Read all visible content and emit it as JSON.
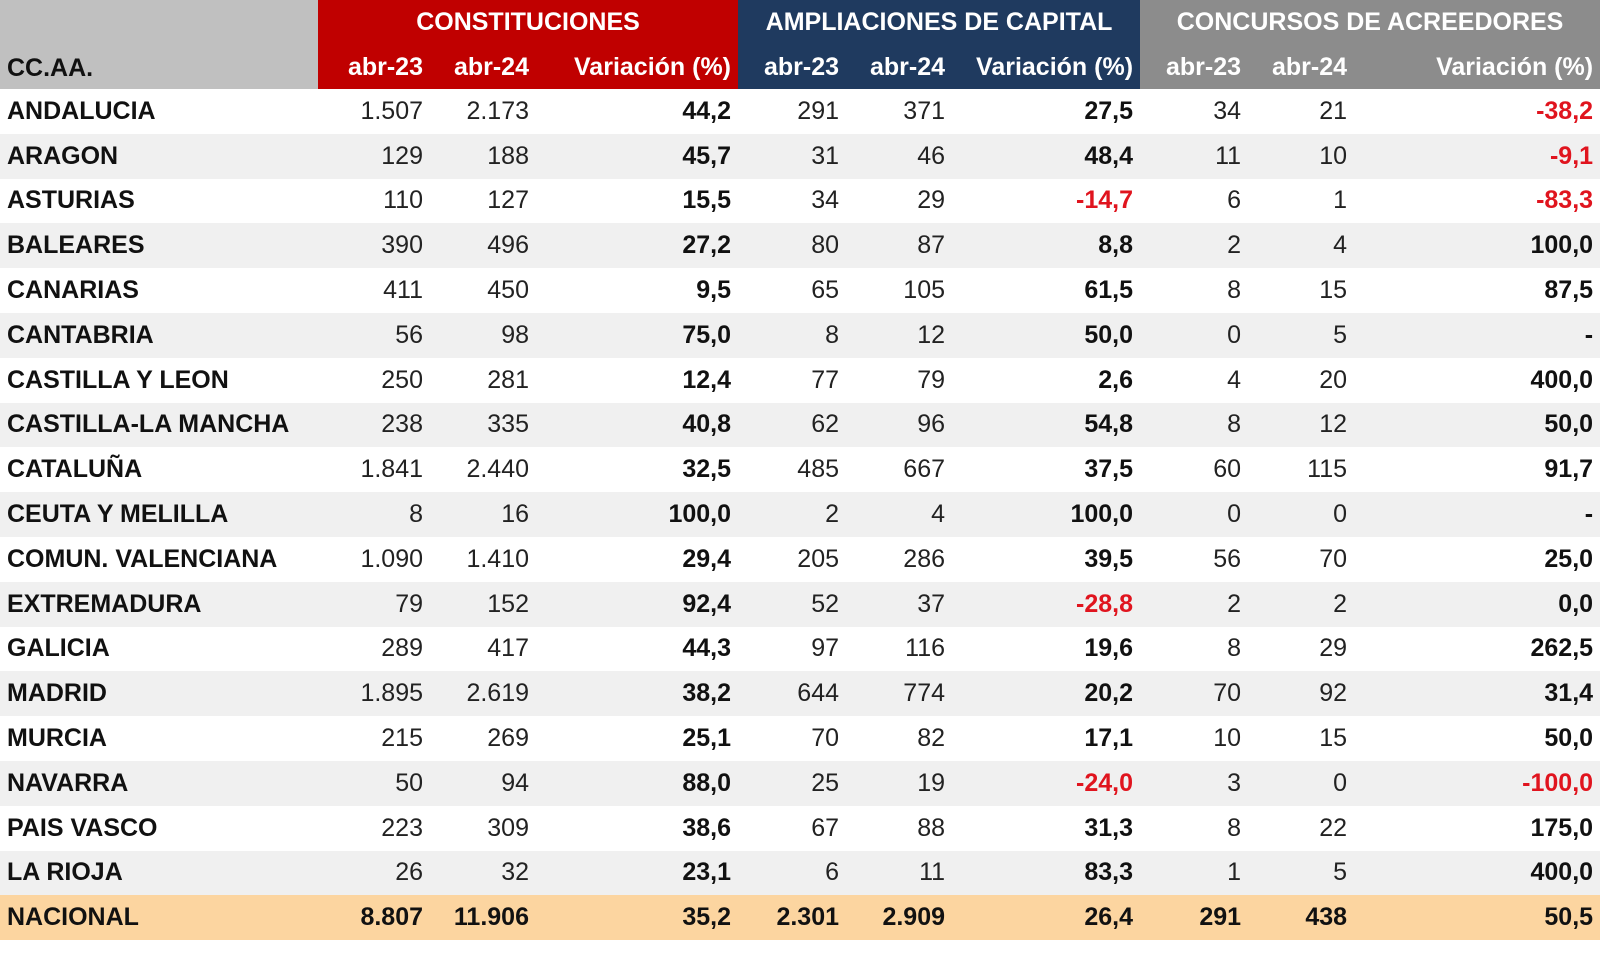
{
  "header": {
    "region_label": "CC.AA.",
    "groups": [
      "CONSTITUCIONES",
      "AMPLIACIONES DE CAPITAL",
      "CONCURSOS DE ACREEDORES"
    ],
    "subcols": [
      "abr-23",
      "abr-24",
      "Variación (%)"
    ]
  },
  "colors": {
    "constituciones": "#c00000",
    "ampliaciones": "#1f3a5f",
    "concursos": "#8c8c8c",
    "negative": "#e0141e",
    "total_row": "#fcd5a0"
  },
  "rows": [
    [
      "ANDALUCIA",
      "1.507",
      "2.173",
      "44,2",
      "291",
      "371",
      "27,5",
      "34",
      "21",
      "-38,2"
    ],
    [
      "ARAGON",
      "129",
      "188",
      "45,7",
      "31",
      "46",
      "48,4",
      "11",
      "10",
      "-9,1"
    ],
    [
      "ASTURIAS",
      "110",
      "127",
      "15,5",
      "34",
      "29",
      "-14,7",
      "6",
      "1",
      "-83,3"
    ],
    [
      "BALEARES",
      "390",
      "496",
      "27,2",
      "80",
      "87",
      "8,8",
      "2",
      "4",
      "100,0"
    ],
    [
      "CANARIAS",
      "411",
      "450",
      "9,5",
      "65",
      "105",
      "61,5",
      "8",
      "15",
      "87,5"
    ],
    [
      "CANTABRIA",
      "56",
      "98",
      "75,0",
      "8",
      "12",
      "50,0",
      "0",
      "5",
      "-"
    ],
    [
      "CASTILLA Y LEON",
      "250",
      "281",
      "12,4",
      "77",
      "79",
      "2,6",
      "4",
      "20",
      "400,0"
    ],
    [
      "CASTILLA-LA MANCHA",
      "238",
      "335",
      "40,8",
      "62",
      "96",
      "54,8",
      "8",
      "12",
      "50,0"
    ],
    [
      "CATALUÑA",
      "1.841",
      "2.440",
      "32,5",
      "485",
      "667",
      "37,5",
      "60",
      "115",
      "91,7"
    ],
    [
      "CEUTA Y MELILLA",
      "8",
      "16",
      "100,0",
      "2",
      "4",
      "100,0",
      "0",
      "0",
      "-"
    ],
    [
      "COMUN. VALENCIANA",
      "1.090",
      "1.410",
      "29,4",
      "205",
      "286",
      "39,5",
      "56",
      "70",
      "25,0"
    ],
    [
      "EXTREMADURA",
      "79",
      "152",
      "92,4",
      "52",
      "37",
      "-28,8",
      "2",
      "2",
      "0,0"
    ],
    [
      "GALICIA",
      "289",
      "417",
      "44,3",
      "97",
      "116",
      "19,6",
      "8",
      "29",
      "262,5"
    ],
    [
      "MADRID",
      "1.895",
      "2.619",
      "38,2",
      "644",
      "774",
      "20,2",
      "70",
      "92",
      "31,4"
    ],
    [
      "MURCIA",
      "215",
      "269",
      "25,1",
      "70",
      "82",
      "17,1",
      "10",
      "15",
      "50,0"
    ],
    [
      "NAVARRA",
      "50",
      "94",
      "88,0",
      "25",
      "19",
      "-24,0",
      "3",
      "0",
      "-100,0"
    ],
    [
      "PAIS VASCO",
      "223",
      "309",
      "38,6",
      "67",
      "88",
      "31,3",
      "8",
      "22",
      "175,0"
    ],
    [
      "LA RIOJA",
      "26",
      "32",
      "23,1",
      "6",
      "11",
      "83,3",
      "1",
      "5",
      "400,0"
    ]
  ],
  "total": [
    "NACIONAL",
    "8.807",
    "11.906",
    "35,2",
    "2.301",
    "2.909",
    "26,4",
    "291",
    "438",
    "50,5"
  ]
}
